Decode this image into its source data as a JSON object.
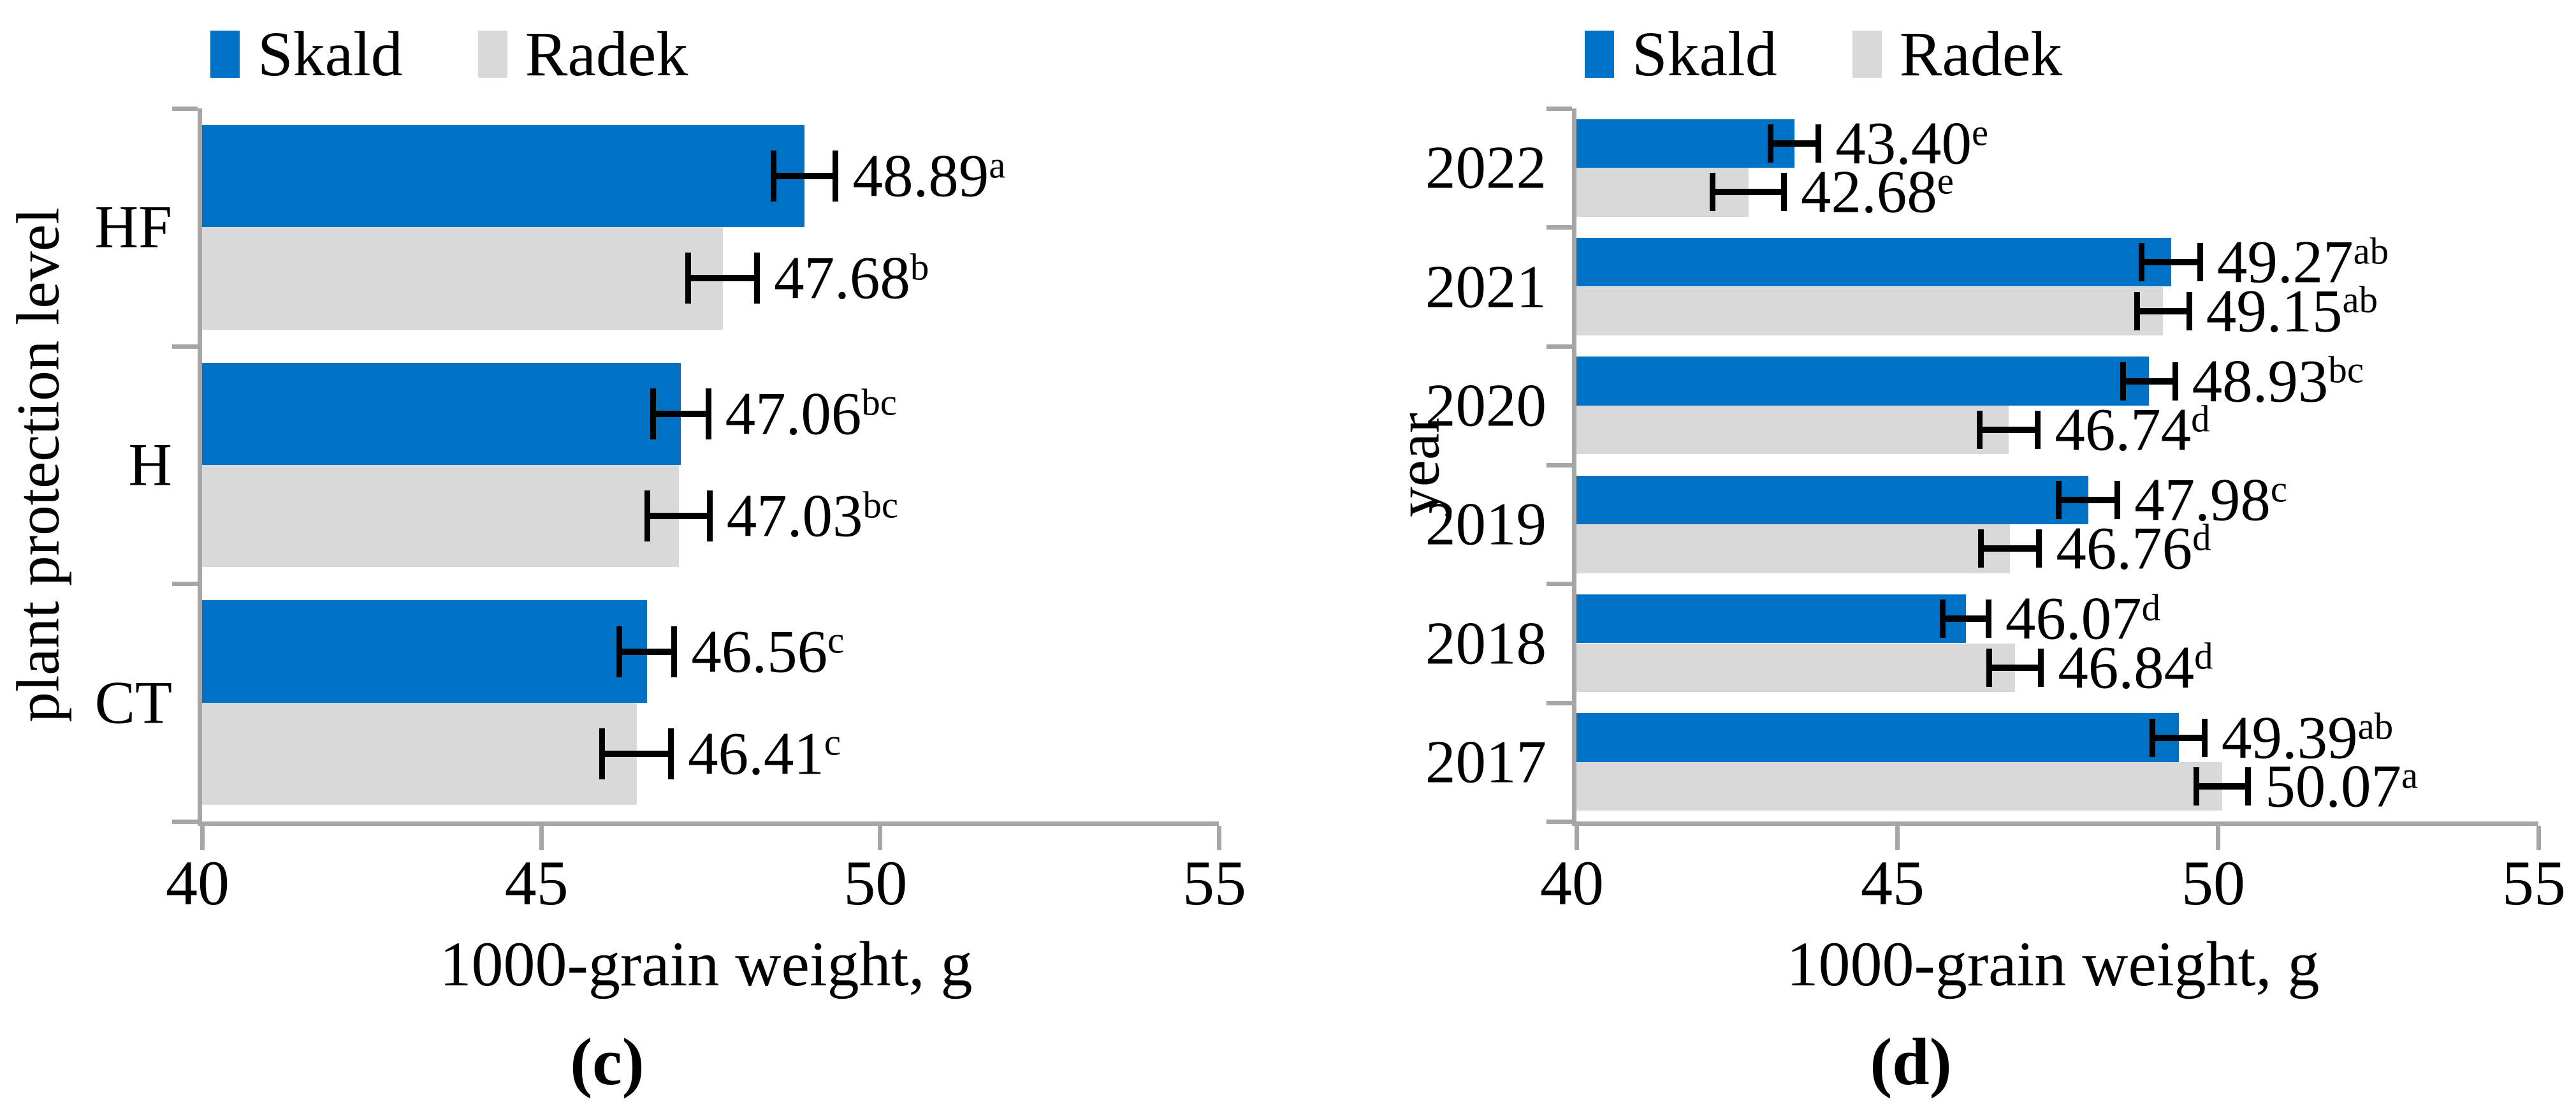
{
  "chart_data": [
    {
      "type": "bar",
      "orientation": "horizontal",
      "caption": "(c)",
      "x_axis": {
        "title": "1000-grain weight, g",
        "min": 40,
        "max": 55,
        "ticks": [
          40,
          45,
          50,
          55
        ],
        "grid": false
      },
      "y_axis": {
        "title": "plant protection level"
      },
      "categories": [
        "HF",
        "H",
        "CT"
      ],
      "legend_position": "top-left",
      "series": [
        {
          "name": "Skald",
          "color": "#0072C6",
          "values": [
            48.89,
            47.06,
            46.56
          ],
          "labels": [
            "48.89",
            "47.06",
            "46.56"
          ],
          "sig_letters": [
            "a",
            "bc",
            "c"
          ],
          "errors": [
            0.5,
            0.45,
            0.45
          ]
        },
        {
          "name": "Radek",
          "color": "#D9D9D9",
          "values": [
            47.68,
            47.03,
            46.41
          ],
          "labels": [
            "47.68",
            "47.03",
            "46.41"
          ],
          "sig_letters": [
            "b",
            "bc",
            "c"
          ],
          "errors": [
            0.55,
            0.5,
            0.55
          ]
        }
      ]
    },
    {
      "type": "bar",
      "orientation": "horizontal",
      "caption": "(d)",
      "x_axis": {
        "title": "1000-grain weight, g",
        "min": 40,
        "max": 55,
        "ticks": [
          40,
          45,
          50,
          55
        ],
        "grid": false
      },
      "y_axis": {
        "title": "year"
      },
      "categories": [
        "2022",
        "2021",
        "2020",
        "2019",
        "2018",
        "2017"
      ],
      "legend_position": "top-left",
      "series": [
        {
          "name": "Skald",
          "color": "#0072C6",
          "values": [
            43.4,
            49.27,
            48.93,
            47.98,
            46.07,
            49.39
          ],
          "labels": [
            "43.40",
            "49.27",
            "48.93",
            "47.98",
            "46.07",
            "49.39"
          ],
          "sig_letters": [
            "e",
            "ab",
            "bc",
            "c",
            "d",
            "ab"
          ],
          "errors": [
            0.42,
            0.5,
            0.45,
            0.5,
            0.4,
            0.45
          ]
        },
        {
          "name": "Radek",
          "color": "#D9D9D9",
          "values": [
            42.68,
            49.15,
            46.74,
            46.76,
            46.84,
            50.07
          ],
          "labels": [
            "42.68",
            "49.15",
            "46.74",
            "46.76",
            "46.84",
            "50.07"
          ],
          "sig_letters": [
            "e",
            "ab",
            "d",
            "d",
            "d",
            "a"
          ],
          "errors": [
            0.6,
            0.45,
            0.5,
            0.5,
            0.45,
            0.45
          ]
        }
      ]
    }
  ]
}
